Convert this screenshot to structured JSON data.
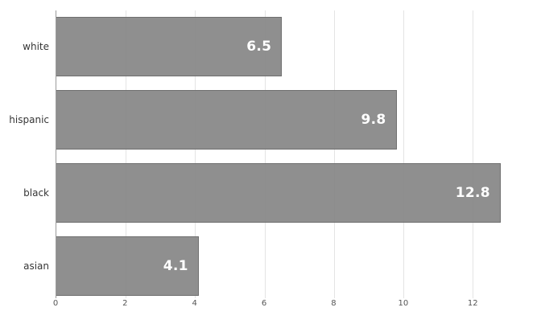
{
  "chart_data": {
    "type": "bar",
    "orientation": "horizontal",
    "title": "",
    "xlabel": "",
    "ylabel": "",
    "categories": [
      "white",
      "hispanic",
      "black",
      "asian"
    ],
    "values": [
      6.5,
      9.8,
      12.8,
      4.1
    ],
    "value_labels": [
      "6.5",
      "9.8",
      "12.8",
      "4.1"
    ],
    "xticks": [
      0,
      2,
      4,
      6,
      8,
      10,
      12
    ],
    "xtick_labels": [
      "0",
      "2",
      "4",
      "6",
      "8",
      "10",
      "12"
    ],
    "xlim": [
      0,
      13.94
    ],
    "grid": "vertical-light",
    "legend": "none",
    "colors": {
      "bar_fill": "#8f8f8f",
      "bar_border": "#6f6f6f",
      "value_label": "#ffffff",
      "gridline": "#e4e4e4",
      "axis_line": "#9b9b9b",
      "category_label": "#363636",
      "tick_label": "#555555",
      "background": "#ffffff"
    }
  }
}
